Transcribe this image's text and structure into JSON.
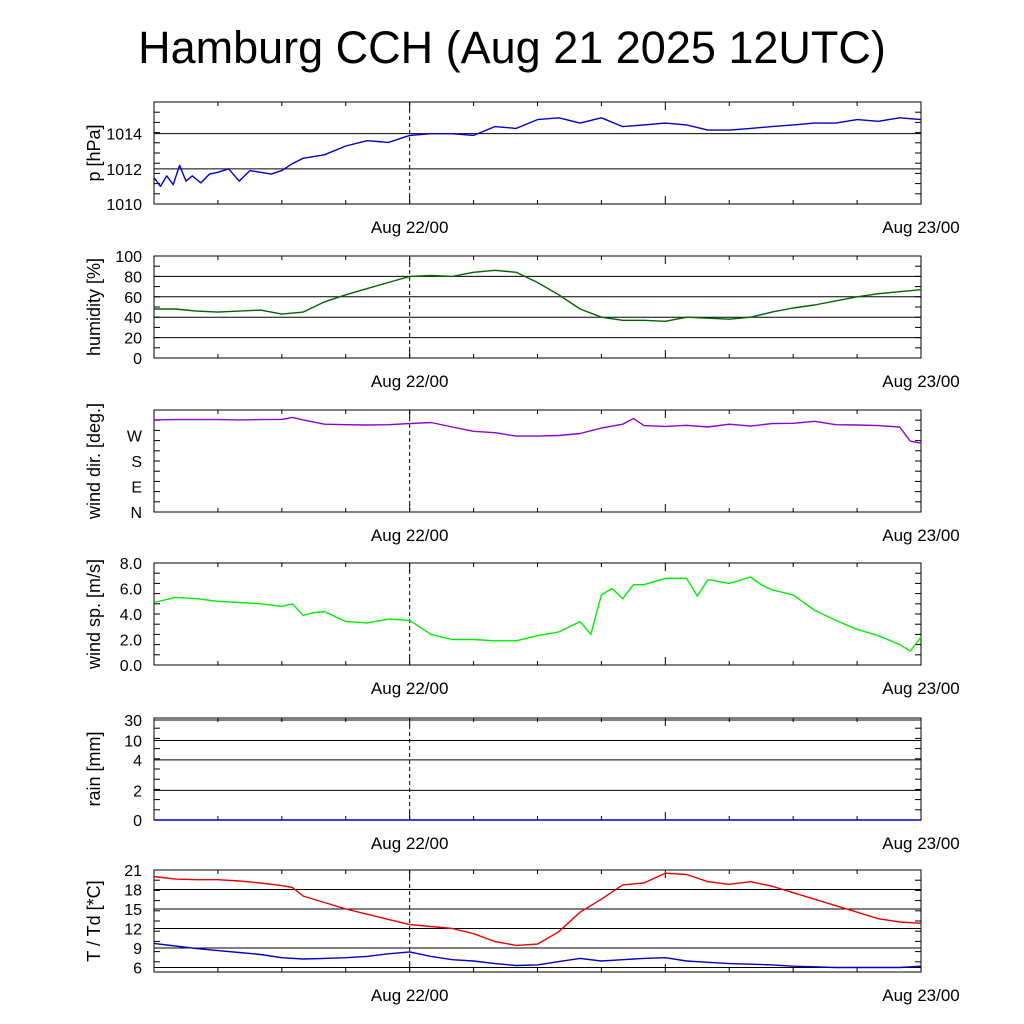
{
  "title": "Hamburg CCH (Aug 21 2025 12UTC)",
  "colors": {
    "pressure": "#0000cc",
    "humidity": "#006400",
    "wind_dir": "#9400d3",
    "wind_speed": "#00ee00",
    "rain": "#0000cc",
    "temperature": "#ee0000",
    "dewpoint": "#0000cc",
    "grid": "#000000"
  },
  "chart_data": [
    {
      "id": "pressure",
      "type": "line",
      "ylabel": "p [hPa]",
      "yticks": [
        1010,
        1012,
        1014
      ],
      "ylim": [
        1010,
        1015.8
      ],
      "xlim": [
        0,
        36
      ],
      "xtick_labels": [
        {
          "x": 12,
          "label": "Aug 22/00"
        },
        {
          "x": 36,
          "label": "Aug 23/00"
        }
      ],
      "grid": "horizontal",
      "series": [
        {
          "color_key": "pressure",
          "x": [
            0,
            0.3,
            0.6,
            0.9,
            1.2,
            1.5,
            1.8,
            2.2,
            2.6,
            3,
            3.5,
            4,
            4.5,
            5,
            5.5,
            6,
            6.5,
            7,
            8,
            9,
            10,
            11,
            12,
            13,
            14,
            15,
            16,
            17,
            18,
            19,
            20,
            21,
            22,
            23,
            24,
            25,
            26,
            27,
            28,
            29,
            30,
            31,
            32,
            33,
            34,
            35,
            36
          ],
          "y": [
            1011.5,
            1011.0,
            1011.6,
            1011.1,
            1012.2,
            1011.3,
            1011.6,
            1011.2,
            1011.7,
            1011.8,
            1012.0,
            1011.3,
            1011.9,
            1011.8,
            1011.7,
            1011.9,
            1012.3,
            1012.6,
            1012.8,
            1013.3,
            1013.6,
            1013.5,
            1013.9,
            1014.0,
            1014.0,
            1013.9,
            1014.4,
            1014.3,
            1014.8,
            1014.9,
            1014.6,
            1014.9,
            1014.4,
            1014.5,
            1014.6,
            1014.5,
            1014.2,
            1014.2,
            1014.3,
            1014.4,
            1014.5,
            1014.6,
            1014.6,
            1014.8,
            1014.7,
            1014.9,
            1014.8
          ]
        }
      ]
    },
    {
      "id": "humidity",
      "type": "line",
      "ylabel": "humidity [%]",
      "yticks": [
        0,
        20,
        40,
        60,
        80,
        100
      ],
      "ylim": [
        0,
        100
      ],
      "xlim": [
        0,
        36
      ],
      "xtick_labels": [
        {
          "x": 12,
          "label": "Aug 22/00"
        },
        {
          "x": 36,
          "label": "Aug 23/00"
        }
      ],
      "grid": "horizontal",
      "series": [
        {
          "color_key": "humidity",
          "x": [
            0,
            1,
            2,
            3,
            4,
            5,
            6,
            7,
            8,
            9,
            10,
            11,
            12,
            13,
            14,
            15,
            16,
            17,
            18,
            19,
            20,
            21,
            22,
            23,
            24,
            25,
            26,
            27,
            28,
            29,
            30,
            31,
            32,
            33,
            34,
            35,
            36
          ],
          "y": [
            48,
            48,
            46,
            45,
            46,
            47,
            43,
            45,
            55,
            62,
            68,
            74,
            80,
            81,
            80,
            84,
            86,
            84,
            74,
            62,
            48,
            40,
            37,
            37,
            36,
            40,
            39,
            38,
            40,
            45,
            49,
            52,
            56,
            60,
            63,
            65,
            67
          ]
        }
      ]
    },
    {
      "id": "wind_direction",
      "type": "line",
      "ylabel": "wind dir. [deg.]",
      "ytick_labels": [
        "N",
        "E",
        "S",
        "W"
      ],
      "yticks": [
        0,
        90,
        180,
        270
      ],
      "ylim": [
        0,
        360
      ],
      "xlim": [
        0,
        36
      ],
      "xtick_labels": [
        {
          "x": 12,
          "label": "Aug 22/00"
        },
        {
          "x": 36,
          "label": "Aug 23/00"
        }
      ],
      "grid": "none",
      "series": [
        {
          "color_key": "wind_dir",
          "x": [
            0,
            1,
            2,
            3,
            4,
            5,
            6,
            6.5,
            7,
            8,
            9,
            10,
            11,
            12,
            13,
            14,
            15,
            16,
            17,
            18,
            19,
            20,
            21,
            22,
            22.5,
            23,
            24,
            25,
            26,
            27,
            28,
            29,
            30,
            31,
            32,
            33,
            34,
            35,
            35.5,
            36
          ],
          "y": [
            325,
            326,
            326,
            326,
            325,
            326,
            327,
            334,
            325,
            310,
            308,
            307,
            308,
            312,
            316,
            300,
            285,
            280,
            268,
            268,
            270,
            277,
            296,
            310,
            330,
            305,
            302,
            306,
            300,
            310,
            303,
            312,
            313,
            320,
            308,
            307,
            305,
            300,
            250,
            243
          ]
        }
      ]
    },
    {
      "id": "wind_speed",
      "type": "line",
      "ylabel": "wind sp. [m/s]",
      "yticks": [
        0.0,
        2.0,
        4.0,
        6.0,
        8.0
      ],
      "ytick_labels": [
        "0.0",
        "2.0",
        "4.0",
        "6.0",
        "8.0"
      ],
      "ylim": [
        0,
        8
      ],
      "xlim": [
        0,
        36
      ],
      "xtick_labels": [
        {
          "x": 12,
          "label": "Aug 22/00"
        },
        {
          "x": 36,
          "label": "Aug 23/00"
        }
      ],
      "grid": "none",
      "series": [
        {
          "color_key": "wind_speed",
          "x": [
            0,
            1,
            2,
            3,
            4,
            5,
            6,
            6.5,
            7,
            7.5,
            8,
            9,
            10,
            11,
            12,
            13,
            14,
            15,
            16,
            17,
            18,
            19,
            20,
            20.5,
            21,
            21.5,
            22,
            22.5,
            23,
            24,
            25,
            25.5,
            26,
            27,
            28,
            28.5,
            29,
            30,
            31,
            32,
            33,
            34,
            35,
            35.5,
            36
          ],
          "y": [
            4.9,
            5.3,
            5.2,
            5.0,
            4.9,
            4.8,
            4.6,
            4.8,
            3.9,
            4.1,
            4.2,
            3.4,
            3.3,
            3.6,
            3.5,
            2.4,
            2.0,
            2.0,
            1.9,
            1.9,
            2.3,
            2.6,
            3.4,
            2.4,
            5.5,
            6.0,
            5.2,
            6.3,
            6.3,
            6.8,
            6.8,
            5.4,
            6.7,
            6.4,
            6.9,
            6.3,
            5.9,
            5.5,
            4.3,
            3.5,
            2.8,
            2.3,
            1.6,
            1.1,
            2.2
          ]
        }
      ]
    },
    {
      "id": "rain",
      "type": "line",
      "ylabel": "rain [mm]",
      "yticks": [
        0,
        2,
        4,
        10,
        30
      ],
      "ytick_labels": [
        "0",
        "2",
        "4",
        "10",
        "30"
      ],
      "ylim": [
        0,
        30
      ],
      "yscale": "nonlinear",
      "xlim": [
        0,
        36
      ],
      "xtick_labels": [
        {
          "x": 12,
          "label": "Aug 22/00"
        },
        {
          "x": 36,
          "label": "Aug 23/00"
        }
      ],
      "grid": "horizontal",
      "series": [
        {
          "color_key": "rain",
          "x": [
            0,
            36
          ],
          "y": [
            0,
            0
          ]
        }
      ]
    },
    {
      "id": "temperature",
      "type": "line",
      "ylabel": "T / Td [*C]",
      "yticks": [
        6,
        9,
        12,
        15,
        18,
        21
      ],
      "ylim": [
        5.3,
        21
      ],
      "xlim": [
        0,
        36
      ],
      "xtick_labels": [
        {
          "x": 12,
          "label": "Aug 22/00"
        },
        {
          "x": 36,
          "label": "Aug 23/00"
        }
      ],
      "grid": "horizontal",
      "series": [
        {
          "color_key": "temperature",
          "x": [
            0,
            1,
            2,
            3,
            4,
            5,
            6,
            6.5,
            7,
            8,
            9,
            10,
            11,
            12,
            13,
            14,
            15,
            16,
            17,
            18,
            19,
            20,
            21,
            22,
            23,
            24,
            25,
            26,
            27,
            28,
            29,
            30,
            31,
            32,
            33,
            34,
            35,
            36
          ],
          "y": [
            20.0,
            19.6,
            19.5,
            19.5,
            19.3,
            19.0,
            18.6,
            18.3,
            17.0,
            16.0,
            15.0,
            14.2,
            13.4,
            12.6,
            12.3,
            12.0,
            11.2,
            10.0,
            9.4,
            9.6,
            11.5,
            14.5,
            16.5,
            18.7,
            19.0,
            20.5,
            20.3,
            19.2,
            18.8,
            19.2,
            18.5,
            17.5,
            16.5,
            15.5,
            14.5,
            13.5,
            13.0,
            12.8
          ]
        },
        {
          "color_key": "dewpoint",
          "x": [
            0,
            1,
            2,
            3,
            4,
            5,
            6,
            7,
            8,
            9,
            10,
            11,
            12,
            13,
            14,
            15,
            16,
            17,
            18,
            19,
            20,
            21,
            22,
            23,
            24,
            25,
            26,
            27,
            28,
            29,
            30,
            31,
            32,
            33,
            34,
            35,
            36
          ],
          "y": [
            9.7,
            9.3,
            8.9,
            8.6,
            8.3,
            8.0,
            7.5,
            7.3,
            7.4,
            7.5,
            7.7,
            8.1,
            8.4,
            7.7,
            7.2,
            7.0,
            6.6,
            6.3,
            6.4,
            6.9,
            7.4,
            7.0,
            7.2,
            7.4,
            7.5,
            7.0,
            6.8,
            6.6,
            6.5,
            6.4,
            6.2,
            6.1,
            6.0,
            6.0,
            6.0,
            6.0,
            6.2
          ]
        }
      ]
    }
  ]
}
